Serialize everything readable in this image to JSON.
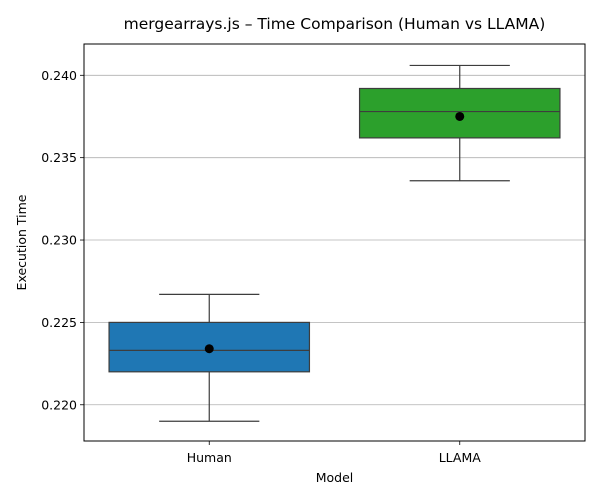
{
  "chart_data": {
    "type": "box",
    "title": "mergearrays.js – Time Comparison (Human vs LLAMA)",
    "xlabel": "Model",
    "ylabel": "Execution Time",
    "categories": [
      "Human",
      "LLAMA"
    ],
    "ylim": [
      0.2178,
      0.2419
    ],
    "yticks": [
      0.22,
      0.225,
      0.23,
      0.235,
      0.24
    ],
    "ytick_labels": [
      "0.220",
      "0.225",
      "0.230",
      "0.235",
      "0.240"
    ],
    "grid": "horizontal",
    "boxes": [
      {
        "name": "Human",
        "color": "#1f77b4",
        "whisker_low": 0.219,
        "q1": 0.222,
        "median": 0.2233,
        "q3": 0.225,
        "whisker_high": 0.2267,
        "mean": 0.2234
      },
      {
        "name": "LLAMA",
        "color": "#2ca02c",
        "whisker_low": 0.2336,
        "q1": 0.2362,
        "median": 0.2378,
        "q3": 0.2392,
        "whisker_high": 0.2406,
        "mean": 0.2375
      }
    ]
  }
}
